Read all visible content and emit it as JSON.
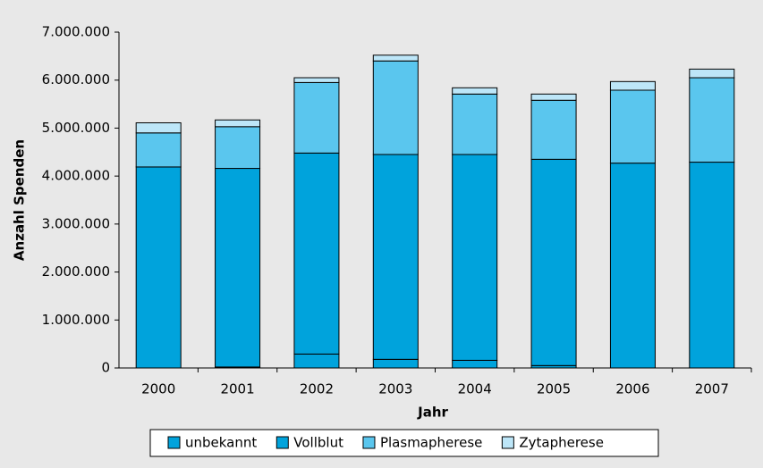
{
  "chart_data": {
    "type": "stacked_bar",
    "xlabel": "Jahr",
    "ylabel": "Anzahl Spenden",
    "categories": [
      "2000",
      "2001",
      "2002",
      "2003",
      "2004",
      "2005",
      "2006",
      "2007"
    ],
    "series": [
      {
        "name": "unbekannt",
        "color": "#00a3dc",
        "values": [
          0,
          20000,
          290000,
          180000,
          160000,
          50000,
          0,
          0
        ]
      },
      {
        "name": "Vollblut",
        "color": "#00a3dc",
        "values": [
          4190000,
          4140000,
          4190000,
          4270000,
          4290000,
          4300000,
          4270000,
          4290000
        ]
      },
      {
        "name": "Plasmapherese",
        "color": "#5ac6ee",
        "values": [
          710000,
          870000,
          1470000,
          1950000,
          1260000,
          1230000,
          1520000,
          1760000
        ]
      },
      {
        "name": "Zytapherese",
        "color": "#bde6f8",
        "values": [
          210000,
          140000,
          100000,
          120000,
          130000,
          130000,
          180000,
          180000
        ]
      }
    ],
    "ylim": [
      0,
      7000000
    ],
    "yticks": [
      0,
      {
        "value": 1000000,
        "label": "1.000.000"
      },
      {
        "value": 2000000,
        "label": "2.000.000"
      },
      {
        "value": 3000000,
        "label": "3.000.000"
      },
      {
        "value": 4000000,
        "label": "4.000.000"
      },
      {
        "value": 5000000,
        "label": "5.000.000"
      },
      {
        "value": 6000000,
        "label": "6.000.000"
      },
      {
        "value": 7000000,
        "label": "7.000.000"
      }
    ],
    "legend": "bottom"
  }
}
